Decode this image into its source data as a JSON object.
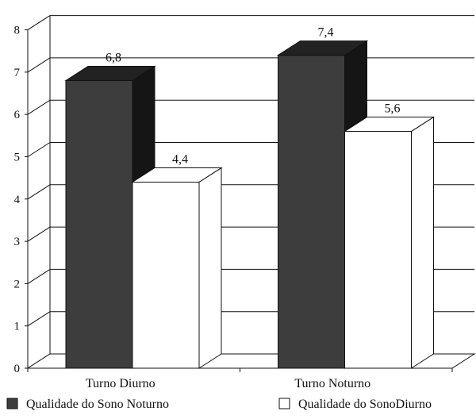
{
  "chart_data": {
    "type": "bar",
    "title": "",
    "xlabel": "",
    "ylabel": "",
    "ylim": [
      0,
      8
    ],
    "yticks": [
      "0",
      "1",
      "2",
      "3",
      "4",
      "5",
      "6",
      "7",
      "8"
    ],
    "categories": [
      "Turno Diurno",
      "Turno Noturno"
    ],
    "series": [
      {
        "name": "Qualidade do Sono Noturno",
        "values": [
          6.8,
          7.4
        ],
        "labels": [
          "6,8",
          "7,4"
        ],
        "color": "#3d3d3d",
        "top_color": "#222222",
        "side_color": "#151515"
      },
      {
        "name": "Qualidade do SonoDiurno",
        "values": [
          4.4,
          5.6
        ],
        "labels": [
          "4,4",
          "5,6"
        ],
        "color": "#ffffff",
        "top_color": "#ffffff",
        "side_color": "#ffffff"
      }
    ],
    "grid": true,
    "legend_position": "bottom"
  }
}
